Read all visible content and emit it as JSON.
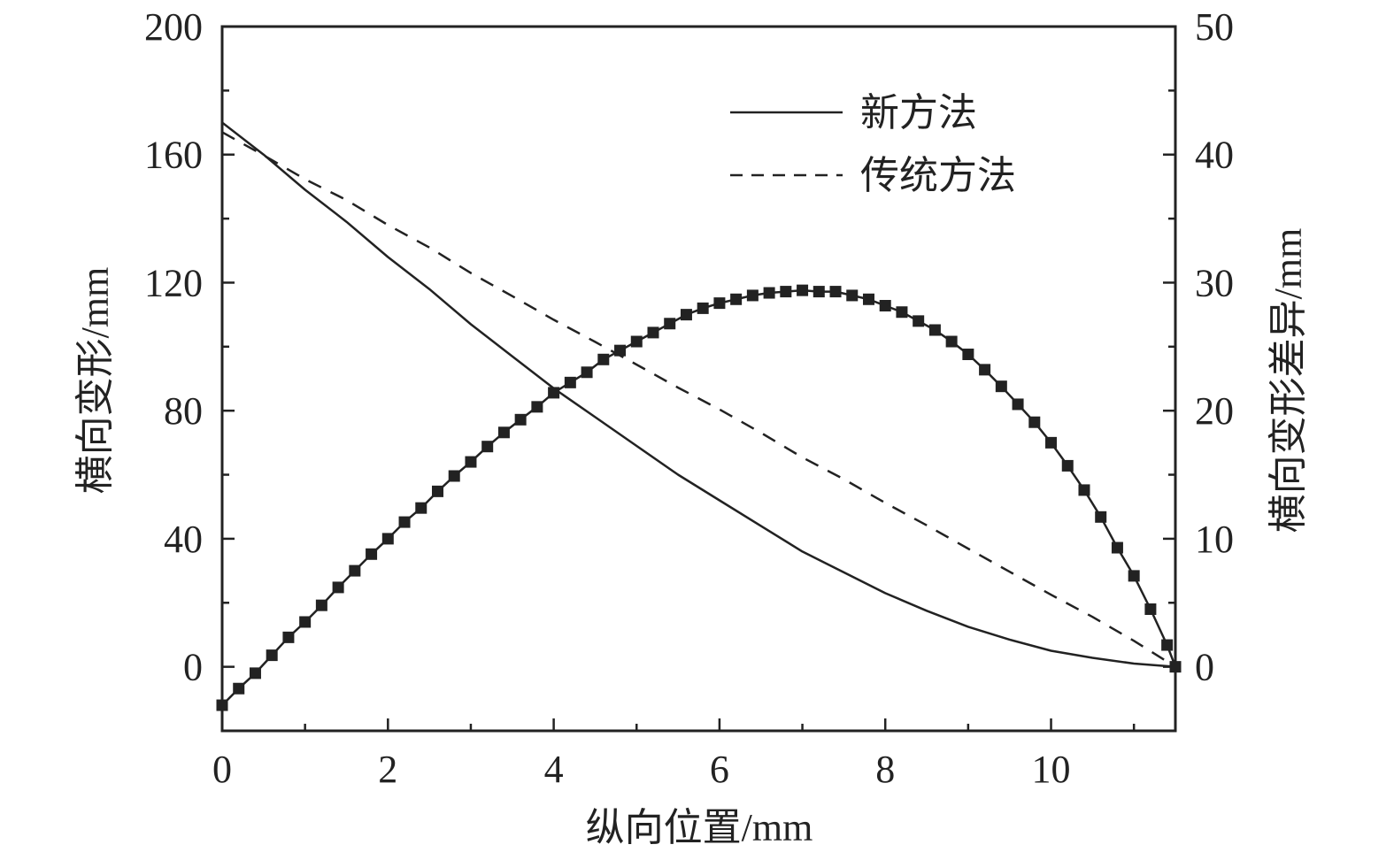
{
  "chart_data": {
    "type": "line",
    "title": "",
    "xlabel": "纵向位置/mm",
    "ylabel_left": "横向变形/mm",
    "ylabel_right": "横向变形差异/mm",
    "xlim": [
      0,
      11.5
    ],
    "ylim_left": [
      -20,
      200
    ],
    "ylim_right": [
      -5,
      50
    ],
    "x_ticks": [
      0,
      2,
      4,
      6,
      8,
      10
    ],
    "y_left_ticks": [
      0,
      40,
      80,
      120,
      160,
      200
    ],
    "y_right_ticks": [
      0,
      10,
      20,
      30,
      40,
      50
    ],
    "grid": false,
    "legend_placement": "top-right",
    "colors": {
      "line": "#222222"
    },
    "series": [
      {
        "name": "新方法",
        "axis": "left",
        "style": "solid",
        "x": [
          0,
          0.5,
          1,
          1.5,
          2,
          2.5,
          3,
          3.5,
          4,
          4.5,
          5,
          5.5,
          6,
          6.5,
          7,
          7.5,
          8,
          8.5,
          9,
          9.5,
          10,
          10.5,
          11,
          11.5
        ],
        "y": [
          170,
          160,
          149,
          139,
          128,
          118,
          107,
          97,
          87,
          78,
          69,
          60,
          52,
          44,
          36,
          29.5,
          23,
          17.5,
          12.5,
          8.5,
          5,
          2.8,
          1,
          0
        ]
      },
      {
        "name": "传统方法",
        "axis": "left",
        "style": "dashed",
        "x": [
          0,
          0.5,
          1,
          1.5,
          2,
          2.5,
          3,
          3.5,
          4,
          4.5,
          5,
          5.5,
          6,
          6.5,
          7,
          7.5,
          8,
          8.5,
          9,
          9.5,
          10,
          10.5,
          11,
          11.5
        ],
        "y": [
          167,
          159.8,
          152.3,
          145.8,
          138,
          131,
          123,
          115.8,
          108.4,
          101.5,
          94.4,
          87.2,
          80.4,
          73.1,
          65.4,
          58.6,
          51.2,
          44.2,
          36.9,
          29.7,
          22.5,
          15.6,
          8.1,
          0
        ]
      },
      {
        "axis": "right",
        "style": "solid-square-markers",
        "x": [
          0,
          0.2,
          0.4,
          0.6,
          0.8,
          1.0,
          1.2,
          1.4,
          1.6,
          1.8,
          2.0,
          2.2,
          2.4,
          2.6,
          2.8,
          3.0,
          3.2,
          3.4,
          3.6,
          3.8,
          4.0,
          4.2,
          4.4,
          4.6,
          4.8,
          5.0,
          5.2,
          5.4,
          5.6,
          5.8,
          6.0,
          6.2,
          6.4,
          6.6,
          6.8,
          7.0,
          7.2,
          7.4,
          7.6,
          7.8,
          8.0,
          8.2,
          8.4,
          8.6,
          8.8,
          9.0,
          9.2,
          9.4,
          9.6,
          9.8,
          10.0,
          10.2,
          10.4,
          10.6,
          10.8,
          11.0,
          11.2,
          11.4,
          11.5
        ],
        "y": [
          -3.0,
          -1.7,
          -0.5,
          0.9,
          2.3,
          3.5,
          4.8,
          6.2,
          7.5,
          8.8,
          10.0,
          11.3,
          12.4,
          13.7,
          14.9,
          16.0,
          17.2,
          18.3,
          19.3,
          20.3,
          21.4,
          22.2,
          23.0,
          24.0,
          24.7,
          25.4,
          26.1,
          26.8,
          27.5,
          28.0,
          28.4,
          28.7,
          29.0,
          29.2,
          29.3,
          29.4,
          29.3,
          29.3,
          29.0,
          28.7,
          28.2,
          27.7,
          27.0,
          26.3,
          25.4,
          24.4,
          23.2,
          21.9,
          20.5,
          19.1,
          17.5,
          15.7,
          13.8,
          11.7,
          9.3,
          7.1,
          4.5,
          1.7,
          0
        ]
      }
    ]
  }
}
